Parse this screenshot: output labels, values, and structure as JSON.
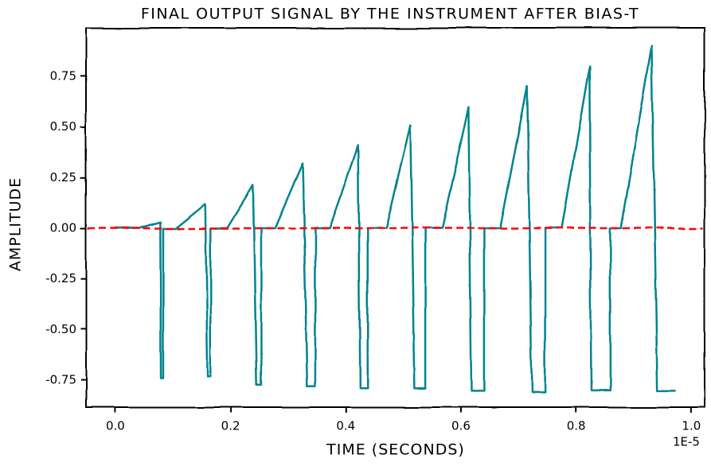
{
  "chart_data": {
    "type": "line",
    "title": "FINAL OUTPUT SIGNAL BY THE INSTRUMENT AFTER BIAS-T",
    "x_label": "TIME (SECONDS)",
    "y_label": "AMPLITUDE",
    "x_offset_label": "1E-5",
    "x": [
      0,
      0.041,
      0.078,
      0.079,
      0.083,
      0.083,
      0.104,
      0.156,
      0.16,
      0.165,
      0.165,
      0.194,
      0.239,
      0.245,
      0.253,
      0.253,
      0.277,
      0.325,
      0.333,
      0.347,
      0.347,
      0.373,
      0.422,
      0.425,
      0.438,
      0.438,
      0.47,
      0.512,
      0.519,
      0.538,
      0.538,
      0.567,
      0.613,
      0.618,
      0.64,
      0.64,
      0.668,
      0.715,
      0.723,
      0.746,
      0.746,
      0.775,
      0.823,
      0.826,
      0.859,
      0.859,
      0.878,
      0.931,
      0.941,
      0.972
    ],
    "series": [
      {
        "color": "#00838f",
        "values": [
          0,
          0,
          0.03,
          -0.74,
          -0.74,
          0,
          0,
          0.12,
          -0.73,
          -0.73,
          0,
          0,
          0.21,
          -0.77,
          -0.77,
          0,
          0,
          0.32,
          -0.78,
          -0.78,
          0,
          0,
          0.41,
          -0.79,
          -0.79,
          0,
          0,
          0.51,
          -0.79,
          -0.79,
          0,
          0,
          0.6,
          -0.8,
          -0.8,
          0,
          0,
          0.7,
          -0.81,
          -0.81,
          0,
          0,
          0.8,
          -0.8,
          -0.8,
          0,
          0,
          0.9,
          -0.8,
          -0.8
        ]
      }
    ],
    "hline": {
      "value": 0,
      "color": "#ff0000",
      "dashed": true
    },
    "xlim": [
      -0.051,
      1.023
    ],
    "ylim": [
      -0.883,
      0.989
    ],
    "xticks": [
      {
        "value": 0,
        "label": "0.0"
      },
      0.2,
      0.4,
      0.6,
      0.8,
      {
        "value": 1,
        "label": "1.0"
      }
    ],
    "yticks": [
      {
        "value": -0.75,
        "label": "-0.75"
      },
      {
        "value": -0.5,
        "label": "-0.50"
      },
      -0.25,
      {
        "value": 0,
        "label": "0.00"
      },
      0.25,
      {
        "value": 0.5,
        "label": "0.50"
      },
      0.75
    ]
  }
}
